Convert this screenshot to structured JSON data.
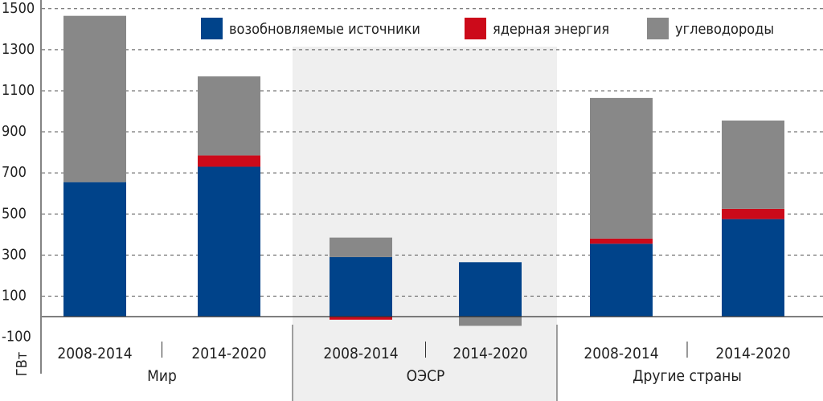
{
  "chart_data": {
    "type": "bar",
    "stacked": true,
    "ylabel": "ГВт",
    "ylim": [
      -100,
      1500
    ],
    "yticks": [
      -100,
      100,
      300,
      500,
      700,
      900,
      1100,
      1300,
      1500
    ],
    "grid": "horizontal dashed",
    "legend_position": "top-right",
    "groups": [
      {
        "name": "Мир",
        "periods": [
          "2008-2014",
          "2014-2020"
        ],
        "highlight": false
      },
      {
        "name": "ОЭСР",
        "periods": [
          "2008-2014",
          "2014-2020"
        ],
        "highlight": true
      },
      {
        "name": "Другие страны",
        "periods": [
          "2008-2014",
          "2014-2020"
        ],
        "highlight": false
      }
    ],
    "categories": [
      "Мир 2008-2014",
      "Мир 2014-2020",
      "ОЭСР 2008-2014",
      "ОЭСР 2014-2020",
      "Другие страны 2008-2014",
      "Другие страны 2014-2020"
    ],
    "series": [
      {
        "name": "возобновляемые источники",
        "color": "#00438a",
        "values": [
          655,
          730,
          290,
          265,
          355,
          475
        ]
      },
      {
        "name": "ядерная энергия",
        "color": "#cc0a1a",
        "values": [
          0,
          55,
          -15,
          0,
          25,
          50
        ]
      },
      {
        "name": "углеводороды",
        "color": "#888888",
        "values": [
          810,
          385,
          95,
          -45,
          685,
          430
        ]
      }
    ]
  },
  "colors": {
    "highlight_band": "#efefef",
    "grid": "#555555",
    "axis": "#333333"
  }
}
